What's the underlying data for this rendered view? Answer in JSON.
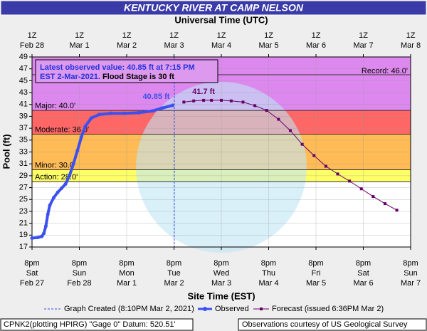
{
  "chart_data": {
    "type": "line",
    "title": "KENTUCKY RIVER AT CAMP NELSON",
    "top_axis_label": "Universal Time (UTC)",
    "x_label": "Site Time (EST)",
    "y_label": "Pool (ft)",
    "xlim": [
      "Feb 27 20:00",
      "Mar 7 20:00"
    ],
    "xticks": [
      {
        "value": "Feb 27 20:00",
        "label": "8pm",
        "day": "Sat",
        "date": "Feb 27"
      },
      {
        "value": "Feb 28 20:00",
        "label": "8pm",
        "day": "Sun",
        "date": "Feb 28"
      },
      {
        "value": "Mar 1 20:00",
        "label": "8pm",
        "day": "Mon",
        "date": "Mar 1"
      },
      {
        "value": "Mar 2 20:00",
        "label": "8pm",
        "day": "Tue",
        "date": "Mar 2"
      },
      {
        "value": "Mar 3 20:00",
        "label": "8pm",
        "day": "Wed",
        "date": "Mar 3"
      },
      {
        "value": "Mar 4 20:00",
        "label": "8pm",
        "day": "Thu",
        "date": "Mar 4"
      },
      {
        "value": "Mar 5 20:00",
        "label": "8pm",
        "day": "Fri",
        "date": "Mar 5"
      },
      {
        "value": "Mar 6 20:00",
        "label": "8pm",
        "day": "Sat",
        "date": "Mar 6"
      },
      {
        "value": "Mar 7 20:00",
        "label": "8pm",
        "day": "Sun",
        "date": "Mar 7"
      }
    ],
    "utc_ticks": [
      {
        "value": "Feb 27 20:00",
        "label": "1Z",
        "date": "Feb 28"
      },
      {
        "value": "Feb 28 20:00",
        "label": "1Z",
        "date": "Mar 1"
      },
      {
        "value": "Mar 1 20:00",
        "label": "1Z",
        "date": "Mar 2"
      },
      {
        "value": "Mar 2 20:00",
        "label": "1Z",
        "date": "Mar 3"
      },
      {
        "value": "Mar 3 20:00",
        "label": "1Z",
        "date": "Mar 4"
      },
      {
        "value": "Mar 4 20:00",
        "label": "1Z",
        "date": "Mar 5"
      },
      {
        "value": "Mar 5 20:00",
        "label": "1Z",
        "date": "Mar 6"
      },
      {
        "value": "Mar 6 20:00",
        "label": "1Z",
        "date": "Mar 7"
      },
      {
        "value": "Mar 7 20:00",
        "label": "1Z",
        "date": "Mar 8"
      }
    ],
    "ylim": [
      17,
      49
    ],
    "yticks": [
      17,
      19,
      21,
      23,
      25,
      27,
      29,
      31,
      33,
      35,
      37,
      39,
      41,
      43,
      45,
      47,
      49
    ],
    "grid": true,
    "stages": [
      {
        "value": 46,
        "label": "Record: 46.0'",
        "color": "#dd88ee"
      },
      {
        "value": 40,
        "label": "Major: 40.0'",
        "color": "#dd88ee"
      },
      {
        "value": 36,
        "label": "Moderate: 36.0'",
        "color": "#ff6666"
      },
      {
        "value": 30,
        "label": "Minor: 30.0'",
        "color": "#ffbb55"
      },
      {
        "value": 28,
        "label": "Action: 28.0'",
        "color": "#ffff66"
      }
    ],
    "graph_created": {
      "x": "Mar 2 20:10",
      "label": "Graph Created (8:10PM Mar 2, 2021)",
      "color": "#3c50f0"
    },
    "series": [
      {
        "name": "Observed",
        "color": "#3c50f0",
        "x": [
          "Feb 27 20:00",
          "Feb 27 23:00",
          "Feb 28 01:00",
          "Feb 28 02:00",
          "Feb 28 03:00",
          "Feb 28 04:00",
          "Feb 28 05:00",
          "Feb 28 07:00",
          "Feb 28 09:00",
          "Feb 28 11:00",
          "Feb 28 13:00",
          "Feb 28 15:00",
          "Feb 28 17:00",
          "Feb 28 19:00",
          "Feb 28 21:00",
          "Feb 28 23:00",
          "Mar 1 02:00",
          "Mar 1 06:00",
          "Mar 1 12:00",
          "Mar 1 19:00",
          "Mar 2 02:00",
          "Mar 2 09:00",
          "Mar 2 14:00",
          "Mar 2 19:15"
        ],
        "values": [
          18.5,
          18.6,
          18.8,
          19.3,
          20.5,
          22.5,
          24.0,
          25.3,
          26.2,
          26.9,
          27.6,
          29.0,
          31.0,
          33.2,
          35.5,
          37.3,
          38.7,
          39.3,
          39.5,
          39.5,
          39.6,
          39.9,
          40.4,
          40.85
        ]
      },
      {
        "name": "Forecast (issued 6:36PM Mar 2)",
        "color": "#660066",
        "x": [
          "Mar 3 01:00",
          "Mar 3 06:00",
          "Mar 3 11:00",
          "Mar 3 15:00",
          "Mar 3 20:00",
          "Mar 4 01:00",
          "Mar 4 07:00",
          "Mar 4 13:00",
          "Mar 4 19:00",
          "Mar 5 01:00",
          "Mar 5 07:00",
          "Mar 5 13:00",
          "Mar 5 19:00",
          "Mar 6 01:00",
          "Mar 6 07:00",
          "Mar 6 13:00",
          "Mar 6 19:00",
          "Mar 7 01:00",
          "Mar 7 07:00",
          "Mar 7 13:00"
        ],
        "values": [
          41.4,
          41.6,
          41.7,
          41.7,
          41.7,
          41.6,
          41.4,
          40.8,
          40.0,
          38.5,
          36.6,
          34.3,
          32.4,
          30.6,
          29.3,
          28.1,
          26.8,
          25.5,
          24.3,
          23.2
        ]
      }
    ],
    "latest_label": "40.85 ft",
    "peak_label": "41.7 ft",
    "info": {
      "line1": "Latest observed value: 40.85 ft at 7:15 PM",
      "line2": "EST 2-Mar-2021.",
      "line2b": "Flood Stage is 30 ft"
    },
    "footer_left": "CPNK2(plotting HPIRG) \"Gage 0\" Datum: 520.51'",
    "footer_right": "Observations courtesy of US Geological Survey"
  }
}
